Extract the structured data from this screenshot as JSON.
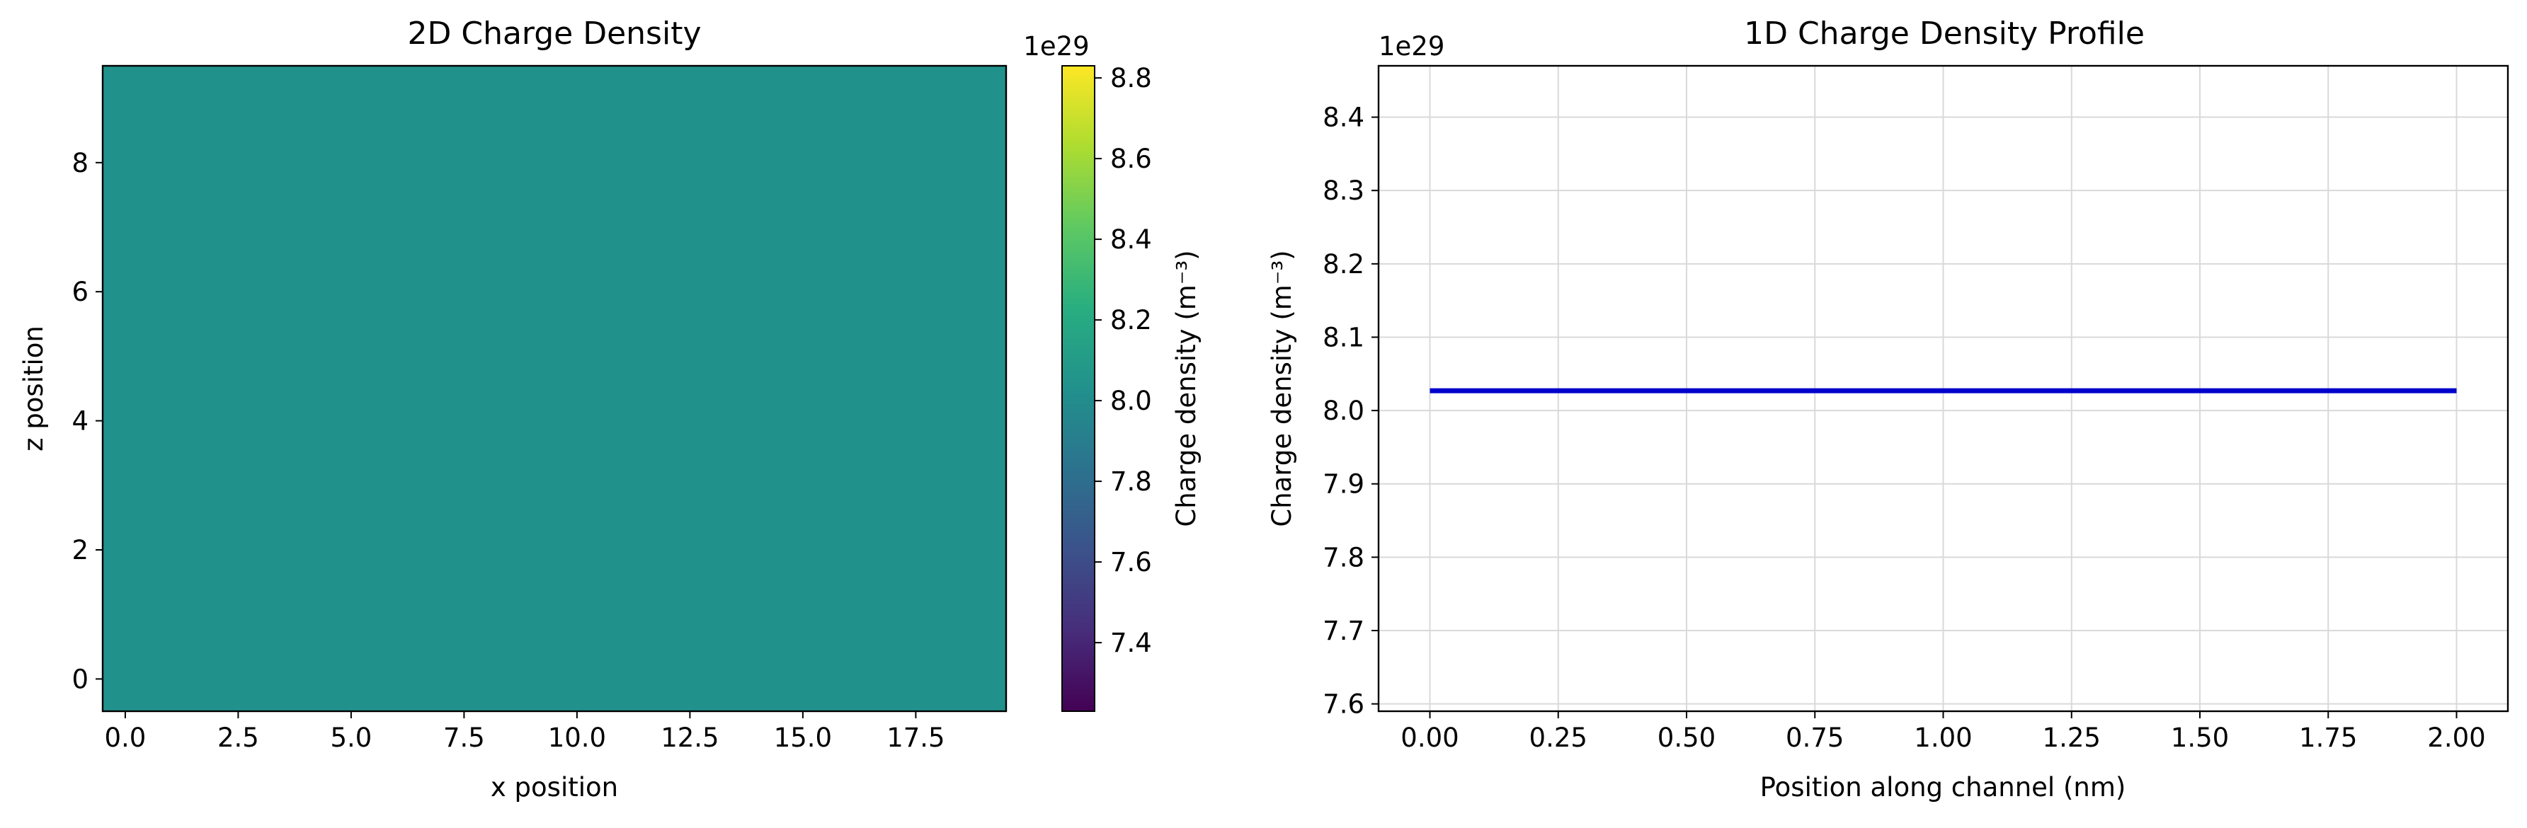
{
  "chart_data": [
    {
      "type": "heatmap",
      "title": "2D Charge Density",
      "xlabel": "x position",
      "ylabel": "z position",
      "x_ticks": [
        "0.0",
        "2.5",
        "5.0",
        "7.5",
        "10.0",
        "12.5",
        "15.0",
        "17.5"
      ],
      "y_ticks": [
        "0",
        "2",
        "4",
        "6",
        "8"
      ],
      "xlim": [
        -0.5,
        19.5
      ],
      "ylim": [
        -0.5,
        9.5
      ],
      "value": 8.03e+29,
      "fill_color": "#21918c",
      "colorbar": {
        "label": "Charge density (m⁻³)",
        "offset_text": "1e29",
        "ticks": [
          "7.4",
          "7.6",
          "7.8",
          "8.0",
          "8.2",
          "8.4",
          "8.6",
          "8.8"
        ],
        "range": [
          7.23,
          8.83
        ],
        "colormap": "viridis"
      }
    },
    {
      "type": "line",
      "title": "1D Charge Density Profile",
      "xlabel": "Position along channel (nm)",
      "ylabel": "Charge density (m⁻³)",
      "y_offset_text": "1e29",
      "x_ticks": [
        "0.00",
        "0.25",
        "0.50",
        "0.75",
        "1.00",
        "1.25",
        "1.50",
        "1.75",
        "2.00"
      ],
      "y_ticks": [
        "7.6",
        "7.7",
        "7.8",
        "7.9",
        "8.0",
        "8.1",
        "8.2",
        "8.3",
        "8.4"
      ],
      "xlim": [
        -0.1,
        2.1
      ],
      "ylim": [
        7.59,
        8.47
      ],
      "grid": true,
      "series": [
        {
          "x": [
            0.0,
            2.0
          ],
          "y": [
            8.027,
            8.027
          ],
          "color": "#0000cc"
        }
      ]
    }
  ]
}
